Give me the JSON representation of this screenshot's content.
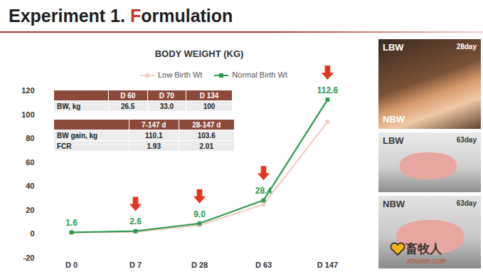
{
  "header": {
    "title_parts": [
      {
        "text": "Experiment 1. "
      },
      {
        "text": "F",
        "color": "#c0392b"
      },
      {
        "text": "ormulation"
      }
    ]
  },
  "chart_data": {
    "type": "line",
    "title": "BODY WEIGHT (KG)",
    "categories": [
      "D 0",
      "D 7",
      "D 28",
      "D 63",
      "D 147"
    ],
    "series": [
      {
        "name": "Low Birth Wt",
        "color": "#f2cfc2",
        "marker": "square",
        "values": [
          1.2,
          2.0,
          7.5,
          25.0,
          94.0
        ],
        "data_labels": false
      },
      {
        "name": "Normal Birth Wt",
        "color": "#2e9a4e",
        "marker": "square",
        "values": [
          1.6,
          2.6,
          9.0,
          28.4,
          112.6
        ],
        "value_labels": [
          "1.6",
          "2.6",
          "9.0",
          "28.4",
          "112.6"
        ],
        "data_labels": true
      }
    ],
    "ylim": [
      -20,
      120
    ],
    "yticks": [
      -20,
      0,
      20,
      40,
      60,
      80,
      100,
      120
    ],
    "grid": false,
    "legend": "top",
    "arrows": {
      "series": "Normal Birth Wt",
      "categories": [
        "D 7",
        "D 28",
        "D 63",
        "D 147"
      ],
      "color": "#e53424"
    }
  },
  "tables": [
    {
      "header": [
        null,
        "D 60",
        "D 70",
        "D 134"
      ],
      "rows": [
        [
          "BW, kg",
          "26.5",
          "33.0",
          "100"
        ]
      ]
    },
    {
      "header": [
        null,
        "7-147 d",
        "28-147 d"
      ],
      "rows": [
        [
          "BW gain, kg",
          "110.1",
          "103.6"
        ],
        [
          "FCR",
          "1.93",
          "2.01"
        ]
      ]
    }
  ],
  "photos": [
    {
      "top_left": "LBW",
      "top_right": "28day",
      "bottom_left": "NBW"
    },
    {
      "top_left": "LBW",
      "top_right": "63day"
    },
    {
      "top_left": "NBW",
      "top_right": "63day"
    }
  ],
  "watermark": {
    "text": "畜牧人",
    "url": "xmuren.com"
  }
}
